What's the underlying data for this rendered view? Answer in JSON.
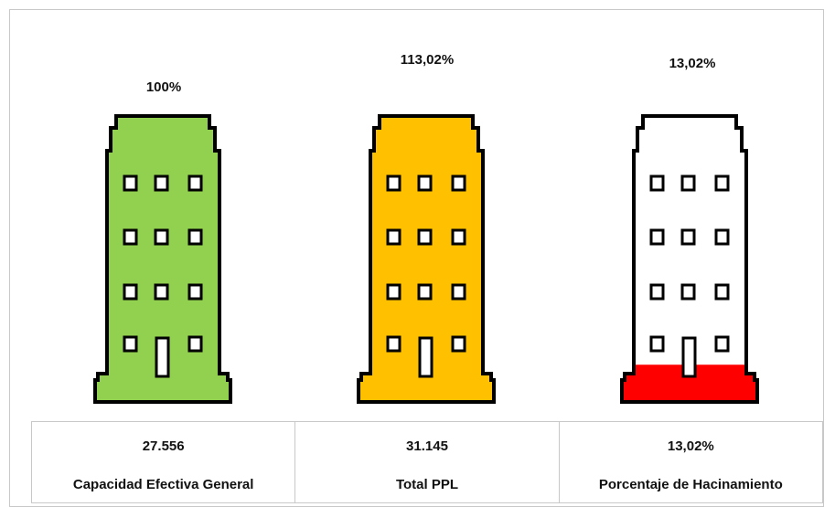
{
  "chart_data": {
    "type": "pictograph",
    "series": [
      {
        "label": "Capacidad Efectiva General",
        "value_label": "27.556",
        "percent_label": "100%",
        "value": 27556,
        "percent": 100,
        "fill_fraction": 1.0,
        "color": "#92d050"
      },
      {
        "label": "Total PPL",
        "value_label": "31.145",
        "percent_label": "113,02%",
        "value": 31145,
        "percent": 113.02,
        "fill_fraction": 1.0,
        "color": "#ffc000"
      },
      {
        "label": "Porcentaje de Hacinamiento",
        "value_label": "13,02%",
        "percent_label": "13,02%",
        "value": 13.02,
        "percent": 13.02,
        "fill_fraction": 0.1302,
        "color": "#ff0000"
      }
    ]
  }
}
